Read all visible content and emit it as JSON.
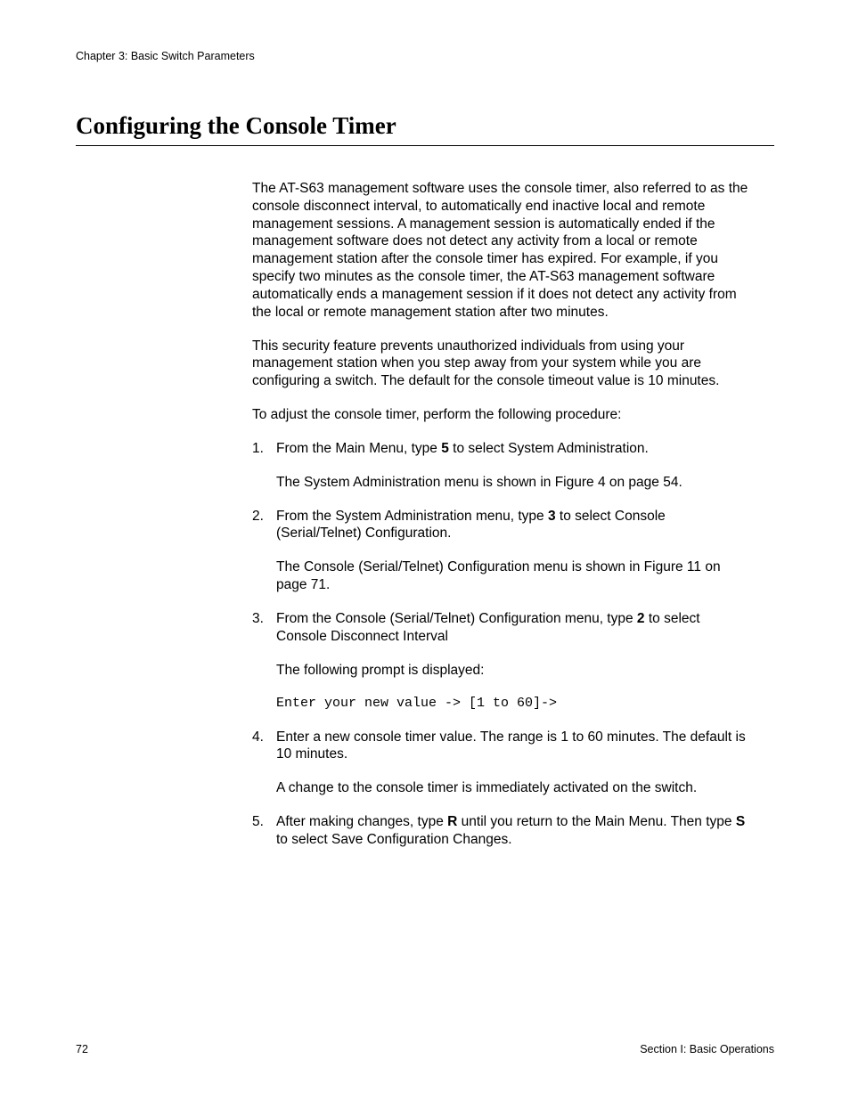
{
  "header": {
    "chapter": "Chapter 3: Basic Switch Parameters"
  },
  "title": "Configuring the Console Timer",
  "body": {
    "p1": "The AT-S63 management software uses the console timer, also referred to as the console disconnect interval, to automatically end inactive local and remote management sessions. A management session is automatically ended if the management software does not detect any activity from a local or remote management station after the console timer has expired. For example, if you specify two minutes as the console timer, the AT-S63 management software automatically ends a management session if it does not detect any activity from the local or remote management station after two minutes.",
    "p2": "This security feature prevents unauthorized individuals from using your management station when you step away from your system while you are configuring a switch. The default for the console timeout value is 10 minutes.",
    "p3": "To adjust the console timer, perform the following procedure:",
    "steps": {
      "s1": {
        "num": "1.",
        "pre": "From the Main Menu, type ",
        "key": "5",
        "post": " to select System Administration.",
        "sub": "The System Administration menu is shown in Figure 4 on page 54."
      },
      "s2": {
        "num": "2.",
        "pre": "From the System Administration menu, type ",
        "key": "3",
        "post": " to select Console (Serial/Telnet) Configuration.",
        "sub": "The Console (Serial/Telnet) Configuration menu is shown in Figure 11 on page 71."
      },
      "s3": {
        "num": "3.",
        "pre": "From the Console (Serial/Telnet) Configuration menu, type ",
        "key": "2",
        "post": " to select Console Disconnect Interval",
        "sub": "The following prompt is displayed:",
        "prompt": "Enter your new value -> [1 to 60]->"
      },
      "s4": {
        "num": "4.",
        "text": "Enter a new console timer value. The range is 1 to 60 minutes. The default is 10 minutes.",
        "sub": "A change to the console timer is immediately activated on the switch."
      },
      "s5": {
        "num": "5.",
        "pre1": "After making changes, type ",
        "key1": "R",
        "mid": " until you return to the Main Menu. Then type ",
        "key2": "S",
        "post2": " to select Save Configuration Changes."
      }
    }
  },
  "footer": {
    "page": "72",
    "section": "Section I: Basic Operations"
  }
}
